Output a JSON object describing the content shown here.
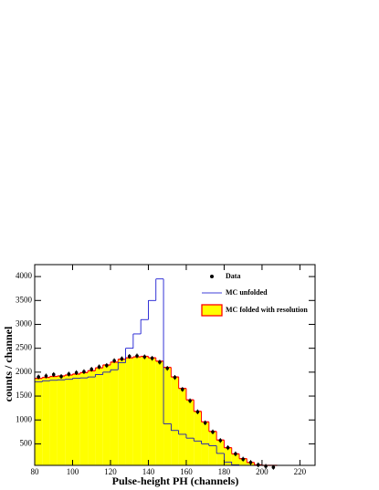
{
  "chart_data": {
    "type": "histogram",
    "x_label": "Pulse-height PH  (channels)",
    "y_label": "counts / channel",
    "xlim": [
      80,
      228
    ],
    "ylim": [
      50,
      4250
    ],
    "xticks": [
      80,
      100,
      120,
      140,
      160,
      180,
      200,
      220
    ],
    "yticks": [
      500,
      1000,
      1500,
      2000,
      2500,
      3000,
      3500,
      4000
    ],
    "bins": [
      80,
      84,
      88,
      92,
      96,
      100,
      104,
      108,
      112,
      116,
      120,
      124,
      128,
      132,
      136,
      140,
      144,
      148,
      152,
      156,
      160,
      164,
      168,
      172,
      176,
      180,
      184,
      188,
      192,
      196,
      200,
      204,
      208
    ],
    "series": [
      {
        "name": "MC folded with resolution",
        "style": "filled",
        "color": "#ffff00",
        "edge_color": "#ff0000",
        "values": [
          1870,
          1890,
          1910,
          1920,
          1940,
          1960,
          1990,
          2030,
          2090,
          2150,
          2210,
          2270,
          2300,
          2320,
          2330,
          2300,
          2230,
          2100,
          1900,
          1660,
          1420,
          1180,
          960,
          760,
          580,
          420,
          290,
          190,
          110,
          60,
          25,
          10
        ]
      },
      {
        "name": "MC unfolded",
        "style": "step",
        "color": "#0000cc",
        "values": [
          1800,
          1820,
          1830,
          1840,
          1850,
          1870,
          1880,
          1900,
          1950,
          2000,
          2050,
          2200,
          2500,
          2800,
          3100,
          3500,
          3950,
          920,
          780,
          700,
          620,
          560,
          500,
          460,
          300,
          120,
          60,
          30,
          15,
          5,
          0,
          0
        ]
      },
      {
        "name": "Data",
        "style": "points",
        "color": "#000000",
        "x": [
          82,
          86,
          90,
          94,
          98,
          102,
          106,
          110,
          114,
          118,
          122,
          126,
          130,
          134,
          138,
          142,
          146,
          150,
          154,
          158,
          162,
          166,
          170,
          174,
          178,
          182,
          186,
          190,
          194,
          198,
          202,
          206
        ],
        "values": [
          1900,
          1920,
          1950,
          1910,
          1960,
          1990,
          2010,
          2060,
          2110,
          2140,
          2240,
          2280,
          2330,
          2340,
          2320,
          2290,
          2210,
          2080,
          1890,
          1640,
          1400,
          1170,
          940,
          750,
          570,
          420,
          290,
          180,
          110,
          60,
          30,
          10
        ],
        "errors": [
          50,
          50,
          50,
          50,
          50,
          50,
          50,
          50,
          50,
          50,
          50,
          50,
          50,
          50,
          50,
          50,
          50,
          50,
          50,
          50,
          50,
          50,
          50,
          50,
          50,
          50,
          50,
          50,
          50,
          50,
          50,
          50
        ]
      }
    ],
    "legend": "upper right"
  }
}
